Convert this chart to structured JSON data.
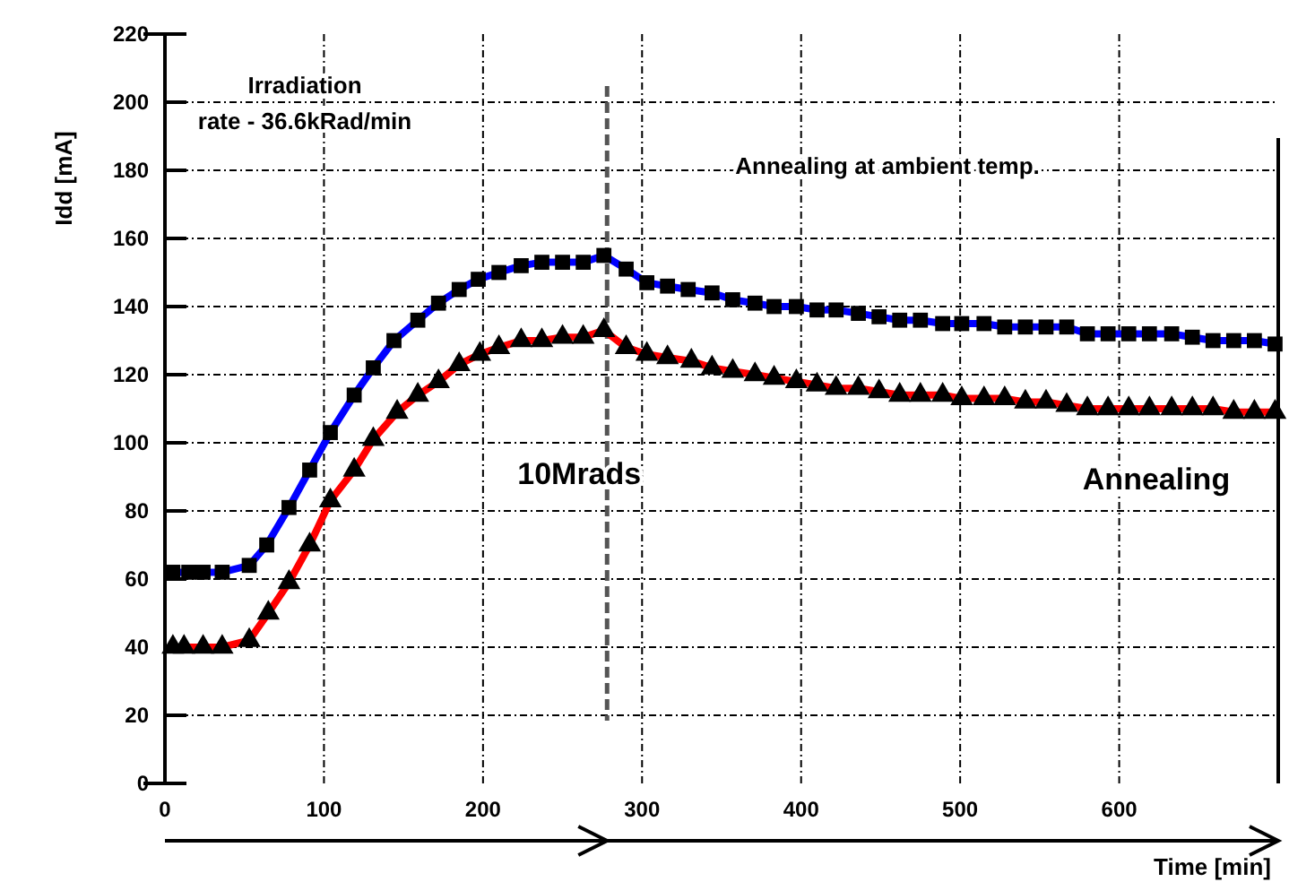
{
  "chart_data": {
    "type": "line",
    "xlabel": "Time [min]",
    "ylabel": "Idd [mA]",
    "xlim": [
      0,
      700
    ],
    "xticks": [
      0,
      100,
      200,
      300,
      400,
      500,
      600
    ],
    "ylim": [
      0,
      220
    ],
    "yticks": [
      0,
      20,
      40,
      60,
      80,
      100,
      120,
      140,
      160,
      180,
      200,
      220
    ],
    "grid": true,
    "series": [
      {
        "color": "#0000ff",
        "marker": "square",
        "x": [
          5,
          15,
          24,
          36,
          53,
          64,
          78,
          91,
          104,
          119,
          131,
          144,
          159,
          172,
          185,
          197,
          210,
          224,
          237,
          250,
          263,
          276,
          290,
          303,
          316,
          329,
          344,
          357,
          371,
          383,
          397,
          410,
          422,
          436,
          449,
          462,
          475,
          489,
          501,
          515,
          528,
          541,
          554,
          567,
          580,
          593,
          606,
          619,
          633,
          646,
          659,
          672,
          685,
          698
        ],
        "values": [
          62,
          62,
          62,
          62,
          64,
          70,
          81,
          92,
          103,
          114,
          122,
          130,
          136,
          141,
          145,
          148,
          150,
          152,
          153,
          153,
          153,
          155,
          151,
          147,
          146,
          145,
          144,
          142,
          141,
          140,
          140,
          139,
          139,
          138,
          137,
          136,
          136,
          135,
          135,
          135,
          134,
          134,
          134,
          134,
          132,
          132,
          132,
          132,
          132,
          131,
          130,
          130,
          130,
          129
        ]
      },
      {
        "color": "#ff0000",
        "marker": "triangle",
        "x": [
          5,
          12,
          24,
          36,
          53,
          65,
          78,
          91,
          104,
          119,
          131,
          146,
          159,
          172,
          185,
          198,
          210,
          224,
          237,
          250,
          263,
          276,
          290,
          303,
          316,
          331,
          344,
          357,
          371,
          383,
          397,
          410,
          422,
          436,
          449,
          462,
          475,
          489,
          501,
          515,
          528,
          541,
          554,
          567,
          580,
          593,
          606,
          619,
          633,
          646,
          659,
          672,
          685,
          698
        ],
        "values": [
          40,
          40,
          40,
          40,
          42,
          50,
          59,
          70,
          83,
          92,
          101,
          109,
          114,
          118,
          123,
          126,
          128,
          130,
          130,
          131,
          131,
          133,
          128,
          126,
          125,
          124,
          122,
          121,
          120,
          119,
          118,
          117,
          116,
          116,
          115,
          114,
          114,
          114,
          113,
          113,
          113,
          112,
          112,
          111,
          110,
          110,
          110,
          110,
          110,
          110,
          110,
          109,
          109,
          109
        ]
      }
    ],
    "ref_lines": [
      {
        "axis": "x",
        "value": 278,
        "label": "10Mrads",
        "line_style": "dashed"
      }
    ],
    "annotations": [
      "Irradiation\nrate - 36.6kRad/min",
      "Annealing at ambient temp.",
      "Annealing"
    ]
  }
}
